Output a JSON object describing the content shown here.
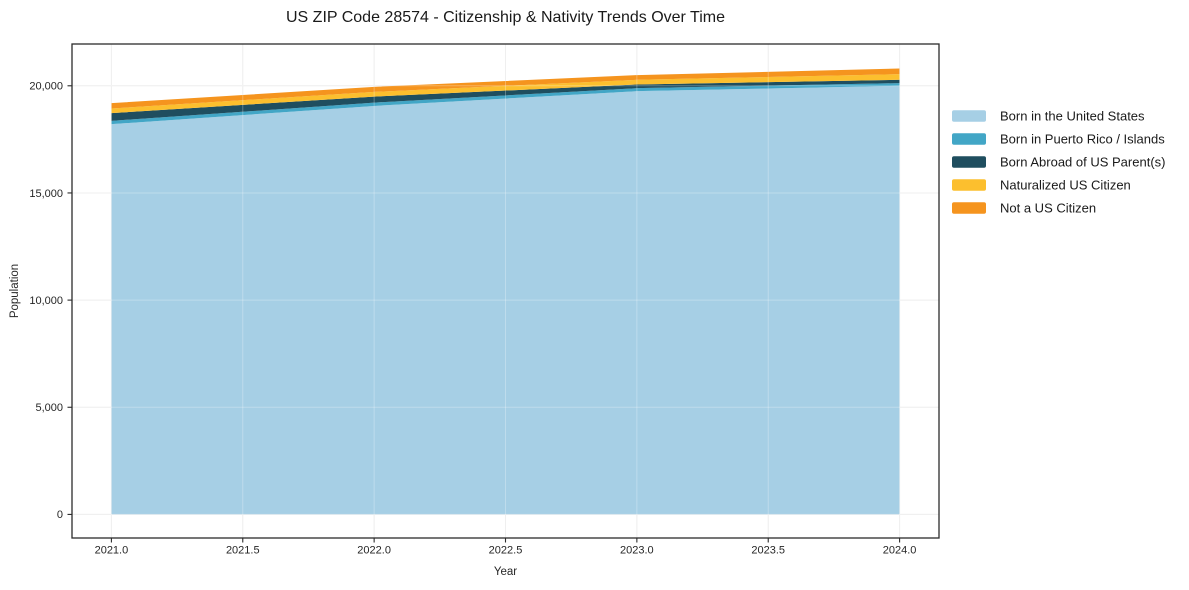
{
  "title": "US ZIP Code 28574 - Citizenship & Nativity Trends Over Time",
  "chart_data": {
    "type": "area",
    "stacked": true,
    "title": "US ZIP Code 28574 - Citizenship & Nativity Trends Over Time",
    "xlabel": "Year",
    "ylabel": "Population",
    "x": [
      2021,
      2022,
      2023,
      2024
    ],
    "series": [
      {
        "name": "Born in the United States",
        "color": "#A6CFE5",
        "values": [
          18210,
          19060,
          19750,
          20000
        ]
      },
      {
        "name": "Born in Puerto Rico / Islands",
        "color": "#42A6C6",
        "values": [
          155,
          155,
          140,
          125
        ]
      },
      {
        "name": "Born Abroad of US Parent(s)",
        "color": "#1F4E5F",
        "values": [
          360,
          280,
          170,
          155
        ]
      },
      {
        "name": "Naturalized US Citizen",
        "color": "#FCBF2E",
        "values": [
          215,
          220,
          220,
          265
        ]
      },
      {
        "name": "Not a US Citizen",
        "color": "#F5941E",
        "values": [
          250,
          235,
          220,
          260
        ]
      }
    ],
    "x_ticks": [
      2021.0,
      2021.5,
      2022.0,
      2022.5,
      2023.0,
      2023.5,
      2024.0
    ],
    "x_tick_labels": [
      "2021.0",
      "2021.5",
      "2022.0",
      "2022.5",
      "2023.0",
      "2023.5",
      "2024.0"
    ],
    "y_ticks": [
      0,
      5000,
      10000,
      15000,
      20000
    ],
    "y_tick_labels": [
      "0",
      "5,000",
      "10,000",
      "15,000",
      "20,000"
    ],
    "xlim": [
      2020.85,
      2024.15
    ],
    "ylim": [
      -1100,
      21950
    ],
    "grid": true,
    "legend_position": "right-outside",
    "colors": {
      "text": "#1a1a1a",
      "tick_text": "#262626",
      "spine": "#2b2b2b",
      "gridline": "#e9e9e9"
    }
  }
}
